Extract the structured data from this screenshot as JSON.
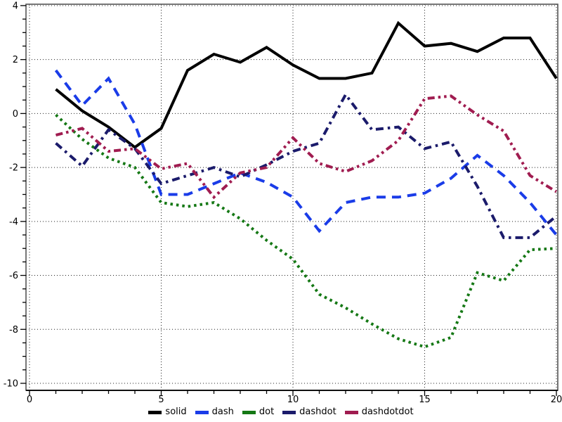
{
  "chart_data": {
    "type": "line",
    "title": "",
    "xlabel": "",
    "ylabel": "",
    "xlim": [
      0,
      20
    ],
    "ylim": [
      -10,
      4
    ],
    "x_ticks": [
      0,
      5,
      10,
      15,
      20
    ],
    "y_ticks": [
      4,
      2,
      0,
      -2,
      -4,
      -6,
      -8,
      -10
    ],
    "x_minor_step": 1,
    "y_minor_step": 0.5,
    "grid": true,
    "grid_style": "dotted",
    "legend_position": "bottom-center",
    "x": [
      1,
      2,
      3,
      4,
      5,
      6,
      7,
      8,
      9,
      10,
      11,
      12,
      13,
      14,
      15,
      16,
      17,
      18,
      19,
      20
    ],
    "series": [
      {
        "name": "solid",
        "style": "solid",
        "color": "#000000",
        "values": [
          0.9,
          0.1,
          -0.5,
          -1.25,
          -0.55,
          1.6,
          2.2,
          1.9,
          2.45,
          1.8,
          1.3,
          1.3,
          1.5,
          3.35,
          2.5,
          2.6,
          2.3,
          2.8,
          2.8,
          1.3
        ]
      },
      {
        "name": "dash",
        "style": "dash",
        "color": "#1a3ce8",
        "values": [
          1.6,
          0.3,
          1.3,
          -0.4,
          -3.0,
          -3.0,
          -2.6,
          -2.2,
          -2.55,
          -3.1,
          -4.35,
          -3.3,
          -3.1,
          -3.1,
          -2.95,
          -2.4,
          -1.55,
          -2.3,
          -3.3,
          -4.5
        ]
      },
      {
        "name": "dot",
        "style": "dot",
        "color": "#157815",
        "values": [
          -0.05,
          -0.95,
          -1.65,
          -2.0,
          -3.3,
          -3.45,
          -3.3,
          -3.9,
          -4.7,
          -5.4,
          -6.7,
          -7.2,
          -7.8,
          -8.35,
          -8.65,
          -8.3,
          -5.9,
          -6.2,
          -5.05,
          -5.0
        ]
      },
      {
        "name": "dashdot",
        "style": "dashdot",
        "color": "#1b1b6b",
        "values": [
          -1.1,
          -1.95,
          -0.6,
          -1.3,
          -2.6,
          -2.3,
          -2.0,
          -2.35,
          -1.9,
          -1.4,
          -1.1,
          0.7,
          -0.6,
          -0.5,
          -1.3,
          -1.05,
          -2.7,
          -4.6,
          -4.6,
          -3.8
        ]
      },
      {
        "name": "dashdotdot",
        "style": "dashdotdot",
        "color": "#a01c50",
        "values": [
          -0.8,
          -0.55,
          -1.4,
          -1.3,
          -2.05,
          -1.85,
          -3.1,
          -2.2,
          -2.0,
          -0.9,
          -1.85,
          -2.15,
          -1.75,
          -1.0,
          0.55,
          0.65,
          -0.05,
          -0.65,
          -2.3,
          -2.9
        ]
      }
    ],
    "legend_labels": [
      "solid",
      "dash",
      "dot",
      "dashdot",
      "dashdotdot"
    ]
  }
}
